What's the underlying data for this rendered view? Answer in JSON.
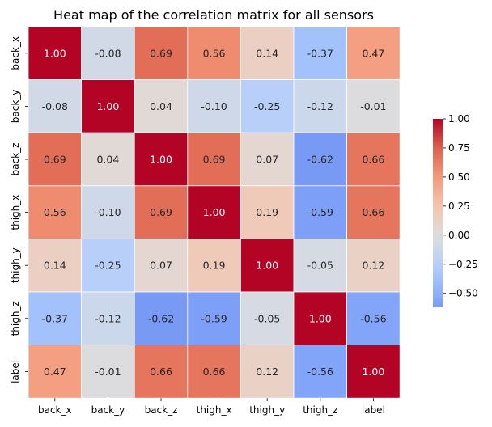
{
  "chart_data": {
    "type": "heatmap",
    "title": "Heat map of the correlation matrix for all sensors",
    "xlabel": "",
    "ylabel": "",
    "labels": [
      "back_x",
      "back_y",
      "back_z",
      "thigh_x",
      "thigh_y",
      "thigh_z",
      "label"
    ],
    "matrix": [
      [
        1.0,
        -0.08,
        0.69,
        0.56,
        0.14,
        -0.37,
        0.47
      ],
      [
        -0.08,
        1.0,
        0.04,
        -0.1,
        -0.25,
        -0.12,
        -0.01
      ],
      [
        0.69,
        0.04,
        1.0,
        0.69,
        0.07,
        -0.62,
        0.66
      ],
      [
        0.56,
        -0.1,
        0.69,
        1.0,
        0.19,
        -0.59,
        0.66
      ],
      [
        0.14,
        -0.25,
        0.07,
        0.19,
        1.0,
        -0.05,
        0.12
      ],
      [
        -0.37,
        -0.12,
        -0.62,
        -0.59,
        -0.05,
        1.0,
        -0.56
      ],
      [
        0.47,
        -0.01,
        0.66,
        0.66,
        0.12,
        -0.56,
        1.0
      ]
    ],
    "colormap": "coolwarm",
    "vmin": -0.62,
    "vmax": 1.0,
    "center": 0,
    "colorbar_ticks": [
      "1.00",
      "0.75",
      "0.50",
      "0.25",
      "0.00",
      "−0.25",
      "−0.50"
    ],
    "colorbar_tick_values": [
      1.0,
      0.75,
      0.5,
      0.25,
      0.0,
      -0.25,
      -0.5
    ],
    "legend": "colorbar-right"
  }
}
